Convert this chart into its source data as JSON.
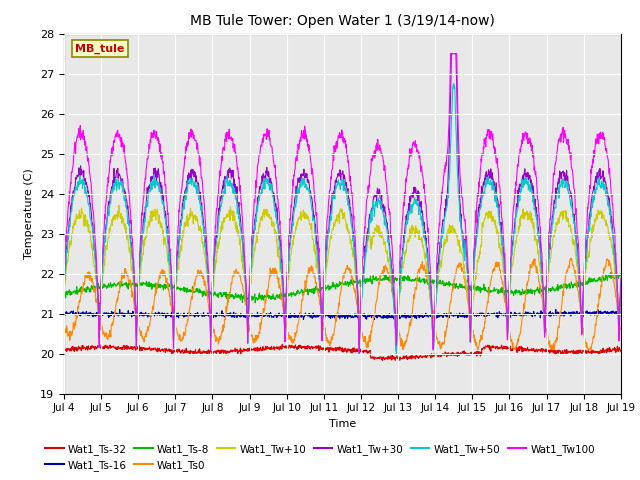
{
  "title": "MB Tule Tower: Open Water 1 (3/19/14-now)",
  "xlabel": "Time",
  "ylabel": "Temperature (C)",
  "ylim": [
    19.0,
    28.0
  ],
  "yticks": [
    19.0,
    20.0,
    21.0,
    22.0,
    23.0,
    24.0,
    25.0,
    26.0,
    27.0,
    28.0
  ],
  "xtick_labels": [
    "Jul 4",
    "Jul 5",
    "Jul 6",
    "Jul 7",
    "Jul 8",
    "Jul 9",
    "Jul 10",
    "Jul 11",
    "Jul 12",
    "Jul 13",
    "Jul 14",
    "Jul 15",
    "Jul 16",
    "Jul 17",
    "Jul 18",
    "Jul 19"
  ],
  "annotation_label": "MB_tule",
  "annotation_color": "#cc0000",
  "annotation_bg": "#ffffcc",
  "annotation_border": "#888800",
  "series_colors": {
    "Wat1_Ts-32": "#dd0000",
    "Wat1_Ts-16": "#0000aa",
    "Wat1_Ts-8": "#00bb00",
    "Wat1_Ts0": "#ff8800",
    "Wat1_Tw+10": "#cccc00",
    "Wat1_Tw+30": "#9900cc",
    "Wat1_Tw+50": "#00cccc",
    "Wat1_Tw100": "#ff00ff"
  },
  "plot_bg": "#e8e8e8",
  "grid_color": "#ffffff",
  "legend_order": [
    "Wat1_Ts-32",
    "Wat1_Ts-16",
    "Wat1_Ts-8",
    "Wat1_Ts0",
    "Wat1_Tw+10",
    "Wat1_Tw+30",
    "Wat1_Tw+50",
    "Wat1_Tw100"
  ]
}
